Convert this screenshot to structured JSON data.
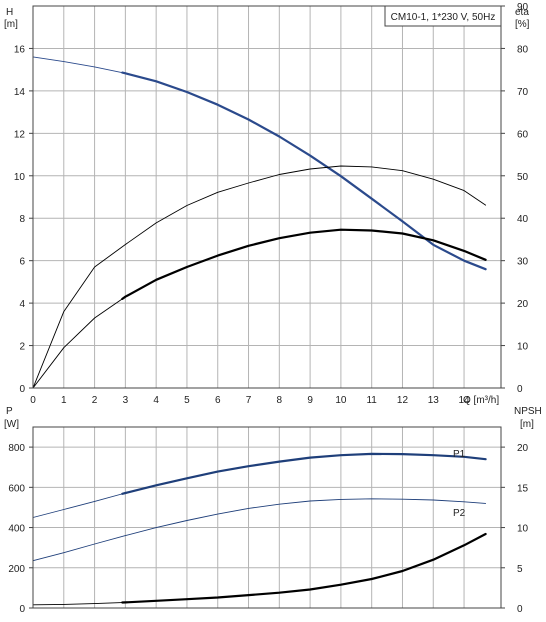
{
  "colors": {
    "grid": "#b4b4b4",
    "frame": "#444444",
    "head_curve": "#2b4a8c",
    "power_curve": "#1f3f7a",
    "black_curve": "#000000"
  },
  "chart_data": [
    {
      "id": "performance",
      "type": "line",
      "title": "CM10-1, 1*230 V, 50Hz",
      "xlabel": "Q [m³/h]",
      "ylabel_left_name": "H",
      "ylabel_left_unit": "[m]",
      "ylabel_right_name": "eta",
      "ylabel_right_unit": "[%]",
      "xlim": [
        0,
        15.2
      ],
      "ylim_left": [
        0,
        18
      ],
      "ylim_right": [
        0,
        90
      ],
      "xticks": [
        0,
        1,
        2,
        3,
        4,
        5,
        6,
        7,
        8,
        9,
        10,
        11,
        12,
        13,
        14
      ],
      "yticks_left": [
        0,
        2,
        4,
        6,
        8,
        10,
        12,
        14,
        16
      ],
      "yticks_right": [
        0,
        10,
        20,
        30,
        40,
        50,
        60,
        70,
        80,
        90
      ],
      "grid": true,
      "series": [
        {
          "key": "head",
          "axis": "left",
          "color": "#2b4a8c",
          "x": [
            0,
            1,
            2,
            3,
            4,
            5,
            6,
            7,
            8,
            9,
            10,
            11,
            12,
            13,
            14,
            14.7
          ],
          "y": [
            15.6,
            15.38,
            15.13,
            14.83,
            14.45,
            13.95,
            13.35,
            12.65,
            11.85,
            10.95,
            9.98,
            8.92,
            7.85,
            6.75,
            6.0,
            5.6
          ],
          "operating_from": 2.9
        },
        {
          "key": "eta_thin",
          "axis": "right",
          "color": "#000000",
          "x": [
            0,
            1,
            2,
            3,
            4,
            5,
            6,
            7,
            8,
            9,
            10,
            11,
            12,
            13,
            14,
            14.7
          ],
          "y": [
            0,
            18,
            28.5,
            33.8,
            38.9,
            43,
            46.1,
            48.3,
            50.3,
            51.6,
            52.3,
            52.1,
            51.2,
            49.2,
            46.5,
            43.1
          ]
        },
        {
          "key": "eta_thick",
          "axis": "right",
          "color": "#000000",
          "x": [
            0,
            1,
            2,
            3,
            4,
            5,
            6,
            7,
            8,
            9,
            10,
            11,
            12,
            13,
            14,
            14.7
          ],
          "y": [
            0,
            9.5,
            16.5,
            21.5,
            25.5,
            28.5,
            31.2,
            33.5,
            35.3,
            36.6,
            37.3,
            37.1,
            36.4,
            34.8,
            32.3,
            30.2
          ],
          "operating_from": 2.9
        }
      ]
    },
    {
      "id": "power",
      "type": "line",
      "xlabel": "",
      "ylabel_left_name": "P",
      "ylabel_left_unit": "[W]",
      "ylabel_right_name": "NPSH",
      "ylabel_right_unit": "[m]",
      "xlim": [
        0,
        15.2
      ],
      "ylim_left": [
        0,
        900
      ],
      "ylim_right": [
        0,
        22.5
      ],
      "xticks": [
        0,
        1,
        2,
        3,
        4,
        5,
        6,
        7,
        8,
        9,
        10,
        11,
        12,
        13,
        14
      ],
      "yticks_left": [
        0,
        200,
        400,
        600,
        800
      ],
      "yticks_right": [
        0,
        5,
        10,
        15,
        20
      ],
      "grid": true,
      "series": [
        {
          "key": "P1",
          "name": "P1",
          "axis": "left",
          "color": "#1f3f7a",
          "x": [
            0,
            1,
            2,
            3,
            4,
            5,
            6,
            7,
            8,
            9,
            10,
            11,
            12,
            13,
            14,
            14.7
          ],
          "y": [
            450,
            490,
            530,
            572,
            610,
            645,
            678,
            705,
            728,
            748,
            760,
            766,
            765,
            760,
            752,
            740
          ],
          "operating_from": 2.9
        },
        {
          "key": "P2",
          "name": "P2",
          "axis": "left",
          "color": "#1f3f7a",
          "x": [
            0,
            1,
            2,
            3,
            4,
            5,
            6,
            7,
            8,
            9,
            10,
            11,
            12,
            13,
            14,
            14.7
          ],
          "y": [
            235,
            275,
            318,
            360,
            400,
            435,
            467,
            495,
            516,
            532,
            540,
            543,
            541,
            537,
            528,
            520
          ]
        },
        {
          "key": "npsh",
          "axis": "right",
          "color": "#000000",
          "x": [
            0,
            1,
            2,
            3,
            4,
            5,
            6,
            7,
            8,
            9,
            10,
            11,
            12,
            13,
            14,
            14.7
          ],
          "y": [
            0.4,
            0.45,
            0.55,
            0.7,
            0.9,
            1.1,
            1.3,
            1.6,
            1.9,
            2.3,
            2.9,
            3.6,
            4.6,
            6.0,
            7.8,
            9.2
          ],
          "operating_from": 2.9
        }
      ]
    }
  ]
}
